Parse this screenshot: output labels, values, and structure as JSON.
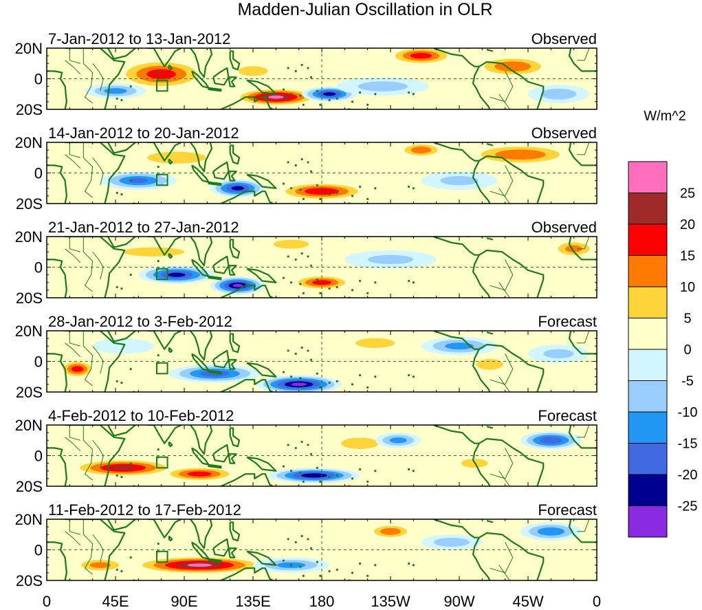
{
  "title": "Madden-Julian Oscillation in OLR",
  "units": "W/m^2",
  "lat_labels": [
    "20N",
    "0",
    "20S"
  ],
  "lon_labels": [
    "0",
    "45E",
    "90E",
    "135E",
    "180",
    "135W",
    "90W",
    "45W",
    "0"
  ],
  "panels": [
    {
      "date_range": "7-Jan-2012 to 13-Jan-2012",
      "type": "Observed"
    },
    {
      "date_range": "14-Jan-2012 to 20-Jan-2012",
      "type": "Observed"
    },
    {
      "date_range": "21-Jan-2012 to 27-Jan-2012",
      "type": "Observed"
    },
    {
      "date_range": "28-Jan-2012 to 3-Feb-2012",
      "type": "Forecast"
    },
    {
      "date_range": "4-Feb-2012 to 10-Feb-2012",
      "type": "Forecast"
    },
    {
      "date_range": "11-Feb-2012 to 17-Feb-2012",
      "type": "Forecast"
    }
  ],
  "colorbar": {
    "levels": [
      "25",
      "20",
      "15",
      "10",
      "5",
      "0",
      "-5",
      "-10",
      "-15",
      "-20",
      "-25"
    ],
    "colors": [
      "#ff6fbe",
      "#9f2a2a",
      "#ff0000",
      "#ff7a00",
      "#ffd43a",
      "#ffffc9",
      "#d2f6ff",
      "#99ccff",
      "#2196f3",
      "#4169e1",
      "#000090",
      "#8a2be2"
    ]
  },
  "map_colors": {
    "coast": "#1a7a1a",
    "border": "#1a7a1a",
    "guide": "#1a7a1a"
  },
  "anomalies": [
    [
      {
        "lon": 75,
        "lat": 3,
        "rlon": 30,
        "rlat": 10,
        "v": 18
      },
      {
        "lon": 150,
        "lat": -12,
        "rlon": 28,
        "rlat": 6,
        "v": 26
      },
      {
        "lon": 185,
        "lat": -10,
        "rlon": 18,
        "rlat": 5,
        "v": -22
      },
      {
        "lon": 45,
        "lat": -8,
        "rlon": 20,
        "rlat": 5,
        "v": -12
      },
      {
        "lon": 245,
        "lat": 15,
        "rlon": 22,
        "rlat": 6,
        "v": 18
      },
      {
        "lon": 305,
        "lat": 8,
        "rlon": 25,
        "rlat": 7,
        "v": 15
      },
      {
        "lon": 135,
        "lat": 5,
        "rlon": 15,
        "rlat": 5,
        "v": 10
      },
      {
        "lon": 220,
        "lat": -5,
        "rlon": 30,
        "rlat": 6,
        "v": -7
      },
      {
        "lon": 335,
        "lat": -10,
        "rlon": 20,
        "rlat": 6,
        "v": -8
      }
    ],
    [
      {
        "lon": 60,
        "lat": -5,
        "rlon": 25,
        "rlat": 6,
        "v": -16
      },
      {
        "lon": 125,
        "lat": -10,
        "rlon": 18,
        "rlat": 6,
        "v": -22
      },
      {
        "lon": 180,
        "lat": -12,
        "rlon": 30,
        "rlat": 6,
        "v": 20
      },
      {
        "lon": 85,
        "lat": 10,
        "rlon": 30,
        "rlat": 6,
        "v": 10
      },
      {
        "lon": 310,
        "lat": 12,
        "rlon": 35,
        "rlat": 7,
        "v": 15
      },
      {
        "lon": 245,
        "lat": 15,
        "rlon": 15,
        "rlat": 5,
        "v": 14
      },
      {
        "lon": 270,
        "lat": -5,
        "rlon": 25,
        "rlat": 6,
        "v": -6
      }
    ],
    [
      {
        "lon": 85,
        "lat": -5,
        "rlon": 25,
        "rlat": 6,
        "v": -22
      },
      {
        "lon": 125,
        "lat": -12,
        "rlon": 18,
        "rlat": 6,
        "v": -26
      },
      {
        "lon": 180,
        "lat": -10,
        "rlon": 20,
        "rlat": 5,
        "v": 18
      },
      {
        "lon": 70,
        "lat": 10,
        "rlon": 40,
        "rlat": 6,
        "v": 6
      },
      {
        "lon": 345,
        "lat": 12,
        "rlon": 15,
        "rlat": 6,
        "v": 12
      },
      {
        "lon": 225,
        "lat": 5,
        "rlon": 30,
        "rlat": 6,
        "v": -6
      },
      {
        "lon": 160,
        "lat": 15,
        "rlon": 20,
        "rlat": 5,
        "v": 8
      }
    ],
    [
      {
        "lon": 20,
        "lat": -5,
        "rlon": 12,
        "rlat": 6,
        "v": 18
      },
      {
        "lon": 110,
        "lat": -8,
        "rlon": 30,
        "rlat": 6,
        "v": -18
      },
      {
        "lon": 165,
        "lat": -15,
        "rlon": 28,
        "rlat": 6,
        "v": -26
      },
      {
        "lon": 270,
        "lat": 10,
        "rlon": 25,
        "rlat": 6,
        "v": -12
      },
      {
        "lon": 290,
        "lat": -2,
        "rlon": 15,
        "rlat": 6,
        "v": 8
      },
      {
        "lon": 215,
        "lat": 12,
        "rlon": 20,
        "rlat": 5,
        "v": 10
      },
      {
        "lon": 335,
        "lat": 5,
        "rlon": 20,
        "rlat": 6,
        "v": -6
      },
      {
        "lon": 50,
        "lat": 10,
        "rlon": 20,
        "rlat": 5,
        "v": -5
      }
    ],
    [
      {
        "lon": 50,
        "lat": -8,
        "rlon": 35,
        "rlat": 6,
        "v": 22
      },
      {
        "lon": 100,
        "lat": -12,
        "rlon": 25,
        "rlat": 5,
        "v": 18
      },
      {
        "lon": 175,
        "lat": -13,
        "rlon": 30,
        "rlat": 5,
        "v": -24
      },
      {
        "lon": 205,
        "lat": 8,
        "rlon": 20,
        "rlat": 6,
        "v": 9
      },
      {
        "lon": 230,
        "lat": 10,
        "rlon": 15,
        "rlat": 5,
        "v": -12
      },
      {
        "lon": 330,
        "lat": 10,
        "rlon": 20,
        "rlat": 6,
        "v": -20
      },
      {
        "lon": 280,
        "lat": -5,
        "rlon": 15,
        "rlat": 5,
        "v": 8
      }
    ],
    [
      {
        "lon": 100,
        "lat": -10,
        "rlon": 45,
        "rlat": 6,
        "v": 26
      },
      {
        "lon": 35,
        "lat": -10,
        "rlon": 18,
        "rlat": 5,
        "v": 12
      },
      {
        "lon": 160,
        "lat": -10,
        "rlon": 25,
        "rlat": 5,
        "v": -12
      },
      {
        "lon": 225,
        "lat": 12,
        "rlon": 15,
        "rlat": 5,
        "v": 14
      },
      {
        "lon": 330,
        "lat": 12,
        "rlon": 20,
        "rlat": 6,
        "v": -14
      },
      {
        "lon": 265,
        "lat": 5,
        "rlon": 20,
        "rlat": 5,
        "v": -8
      }
    ]
  ]
}
